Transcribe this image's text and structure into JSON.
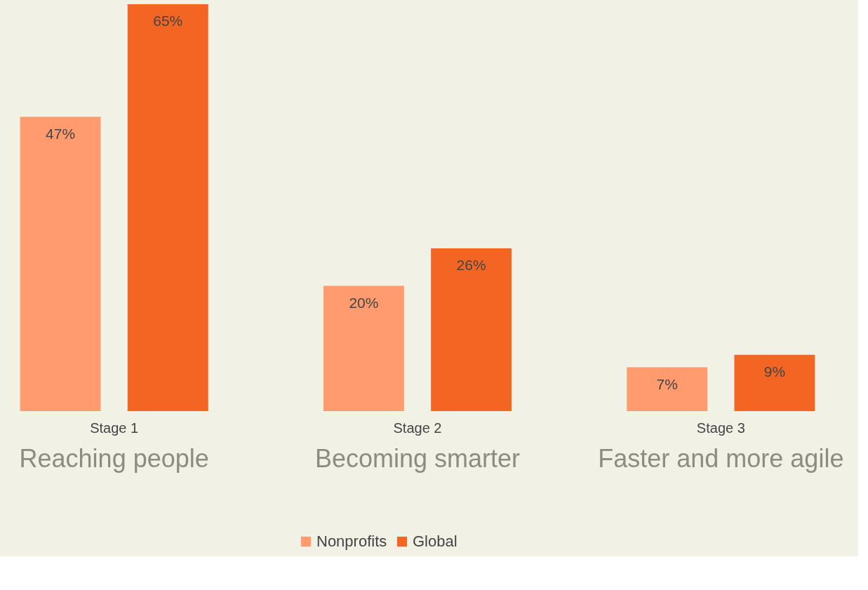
{
  "chart_data": {
    "type": "bar",
    "categories": [
      "Stage 1",
      "Stage 2",
      "Stage 3"
    ],
    "series": [
      {
        "name": "Nonprofits",
        "color": "#ff9b6e",
        "values": [
          47,
          20,
          7
        ],
        "value_labels": [
          "47%",
          "20%",
          "7%"
        ]
      },
      {
        "name": "Global",
        "color": "#f26522",
        "values": [
          65,
          26,
          9
        ],
        "value_labels": [
          "65%",
          "26%",
          "9%"
        ]
      }
    ],
    "annotations": [
      "Reaching people",
      "Becoming smarter",
      "Faster and more agile"
    ],
    "legend": "bottom"
  }
}
